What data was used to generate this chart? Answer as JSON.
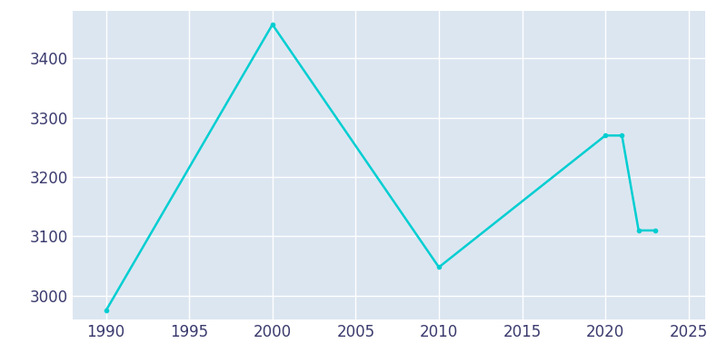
{
  "years": [
    1990,
    2000,
    2010,
    2020,
    2021,
    2022,
    2023
  ],
  "population": [
    2975,
    3457,
    3048,
    3270,
    3270,
    3110,
    3110
  ],
  "line_color": "#00CED1",
  "background_color": "#dce6f1",
  "outer_background": "#ffffff",
  "grid_color": "#ffffff",
  "tick_label_color": "#3a3a6e",
  "xlim": [
    1988,
    2026
  ],
  "ylim": [
    2960,
    3480
  ],
  "xticks": [
    1990,
    1995,
    2000,
    2005,
    2010,
    2015,
    2020,
    2025
  ],
  "yticks": [
    3000,
    3100,
    3200,
    3300,
    3400
  ],
  "linewidth": 1.8,
  "marker": "o",
  "markersize": 3,
  "tick_labelsize": 12
}
